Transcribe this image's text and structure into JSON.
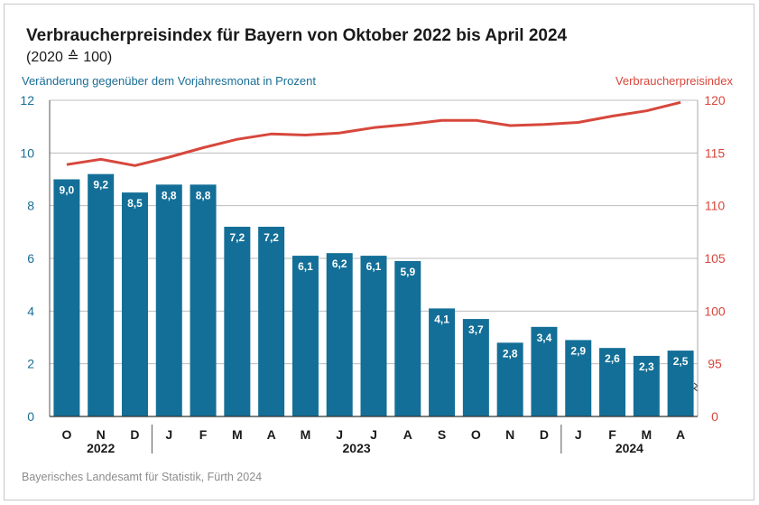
{
  "title": "Verbraucherpreisindex für Bayern von Oktober 2022 bis April 2024",
  "subtitle": "(2020 ≙ 100)",
  "source": "Bayerisches Landesamt für Statistik, Fürth 2024",
  "colors": {
    "bar": "#136f97",
    "line": "#d7473c",
    "left_axis": "#1a6e96",
    "right_axis": "#d7473c",
    "grid": "#bdbdbd"
  },
  "chart_data": {
    "type": "bar+line",
    "categories": [
      "O",
      "N",
      "D",
      "J",
      "F",
      "M",
      "A",
      "M",
      "J",
      "J",
      "A",
      "S",
      "O",
      "N",
      "D",
      "J",
      "F",
      "M",
      "A"
    ],
    "years": [
      {
        "label": "2022",
        "start": 0,
        "end": 2
      },
      {
        "label": "2023",
        "start": 3,
        "end": 14
      },
      {
        "label": "2024",
        "start": 15,
        "end": 18
      }
    ],
    "bar_series": {
      "name": "Veränderung gegenüber dem Vorjahresmonat in Prozent",
      "values": [
        9.0,
        9.2,
        8.5,
        8.8,
        8.8,
        7.2,
        7.2,
        6.1,
        6.2,
        6.1,
        5.9,
        4.1,
        3.7,
        2.8,
        3.4,
        2.9,
        2.6,
        2.3,
        2.5
      ],
      "labels": [
        "9,0",
        "9,2",
        "8,5",
        "8,8",
        "8,8",
        "7,2",
        "7,2",
        "6,1",
        "6,2",
        "6,1",
        "5,9",
        "4,1",
        "3,7",
        "2,8",
        "3,4",
        "2,9",
        "2,6",
        "2,3",
        "2,5"
      ]
    },
    "line_series": {
      "name": "Verbraucherpreisindex",
      "values": [
        113.9,
        114.4,
        113.8,
        114.6,
        115.5,
        116.3,
        116.8,
        116.7,
        116.9,
        117.4,
        117.7,
        118.1,
        118.1,
        117.6,
        117.7,
        117.9,
        118.5,
        119.0,
        119.8
      ]
    },
    "left_axis": {
      "label": "Veränderung gegenüber dem Vorjahresmonat in Prozent",
      "min": 0,
      "max": 12,
      "ticks": [
        "0",
        "2",
        "4",
        "6",
        "8",
        "10",
        "12"
      ]
    },
    "right_axis": {
      "label": "Verbraucherpreisindex",
      "min": 90,
      "max": 120,
      "ticks": [
        "0",
        "95",
        "100",
        "105",
        "110",
        "115",
        "120"
      ],
      "break": true
    },
    "grid": true
  }
}
